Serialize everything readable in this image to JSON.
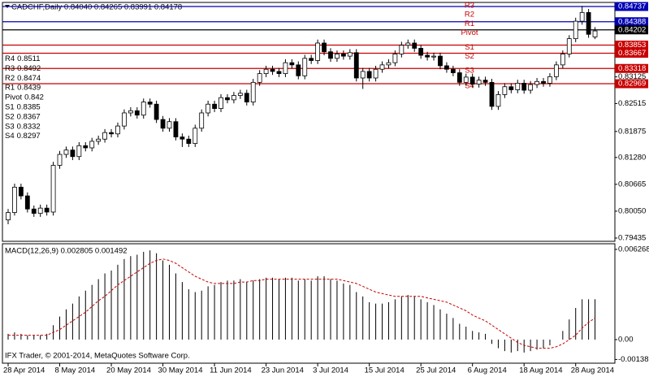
{
  "chart_data": [
    {
      "type": "candlestick",
      "title": "CADCHF,Daily  0.84040 0.84265 0.83991 0.84178",
      "categories": [
        "28 Apr 2014",
        null,
        null,
        null,
        null,
        null,
        null,
        null,
        "8 May 2014",
        null,
        null,
        null,
        null,
        null,
        null,
        null,
        "20 May 2014",
        null,
        null,
        null,
        null,
        null,
        null,
        null,
        "30 May 2014",
        null,
        null,
        null,
        null,
        null,
        null,
        null,
        "11 Jun 2014",
        null,
        null,
        null,
        null,
        null,
        null,
        null,
        "23 Jun 2014",
        null,
        null,
        null,
        null,
        null,
        null,
        null,
        "3 Jul 2014",
        null,
        null,
        null,
        null,
        null,
        null,
        null,
        "15 Jul 2014",
        null,
        null,
        null,
        null,
        null,
        null,
        null,
        "25 Jul 2014",
        null,
        null,
        null,
        null,
        null,
        null,
        null,
        "6 Aug 2014",
        null,
        null,
        null,
        null,
        null,
        null,
        null,
        "18 Aug 2014",
        null,
        null,
        null,
        null,
        null,
        null,
        null,
        "28 Aug 2014",
        null,
        null,
        null
      ],
      "open": [
        0.7985,
        0.8002,
        0.806,
        0.804,
        0.801,
        0.8,
        0.8012,
        0.8003,
        0.811,
        0.8135,
        0.8145,
        0.813,
        0.8155,
        0.815,
        0.8165,
        0.817,
        0.8185,
        0.8182,
        0.82,
        0.823,
        0.8235,
        0.8225,
        0.8255,
        0.825,
        0.8215,
        0.8195,
        0.821,
        0.8175,
        0.817,
        0.816,
        0.8195,
        0.823,
        0.825,
        0.824,
        0.8265,
        0.826,
        0.827,
        0.8275,
        0.8255,
        0.83,
        0.832,
        0.833,
        0.8325,
        0.832,
        0.8345,
        0.834,
        0.8315,
        0.8355,
        0.835,
        0.839,
        0.837,
        0.8355,
        0.8365,
        0.836,
        0.8368,
        0.831,
        0.8325,
        0.831,
        0.833,
        0.834,
        0.8345,
        0.8365,
        0.8385,
        0.839,
        0.8378,
        0.8362,
        0.8358,
        0.836,
        0.8338,
        0.833,
        0.8322,
        0.83,
        0.8312,
        0.8296,
        0.8305,
        0.83,
        0.8245,
        0.8272,
        0.829,
        0.8283,
        0.8298,
        0.8282,
        0.8295,
        0.8302,
        0.8298,
        0.8313,
        0.834,
        0.8365,
        0.84,
        0.844,
        0.846,
        0.8404
      ],
      "high": [
        0.801,
        0.8068,
        0.8068,
        0.8048,
        0.8018,
        0.802,
        0.802,
        0.8118,
        0.8143,
        0.8153,
        0.8153,
        0.8163,
        0.8163,
        0.8173,
        0.8178,
        0.8193,
        0.8193,
        0.8208,
        0.8238,
        0.8243,
        0.8243,
        0.8263,
        0.8263,
        0.8258,
        0.8223,
        0.8218,
        0.8218,
        0.8183,
        0.8178,
        0.8203,
        0.8238,
        0.8258,
        0.8258,
        0.8273,
        0.8273,
        0.8278,
        0.8283,
        0.8283,
        0.8308,
        0.8328,
        0.8338,
        0.8338,
        0.8333,
        0.8353,
        0.8353,
        0.8348,
        0.8363,
        0.8363,
        0.8398,
        0.8398,
        0.8378,
        0.8373,
        0.8373,
        0.8376,
        0.8376,
        0.8333,
        0.8333,
        0.8338,
        0.8348,
        0.8353,
        0.8373,
        0.8393,
        0.8398,
        0.8398,
        0.8386,
        0.837,
        0.8368,
        0.8368,
        0.8346,
        0.8338,
        0.833,
        0.832,
        0.832,
        0.8313,
        0.8313,
        0.8308,
        0.828,
        0.8298,
        0.8298,
        0.8306,
        0.8306,
        0.8303,
        0.831,
        0.831,
        0.8321,
        0.8348,
        0.8373,
        0.8408,
        0.8448,
        0.8475,
        0.8468,
        0.84265
      ],
      "low": [
        0.7975,
        0.7995,
        0.8032,
        0.8002,
        0.7992,
        0.7992,
        0.7995,
        0.7995,
        0.8102,
        0.8127,
        0.8122,
        0.8122,
        0.8142,
        0.8142,
        0.8157,
        0.8162,
        0.8174,
        0.8174,
        0.8192,
        0.8222,
        0.8217,
        0.8217,
        0.8242,
        0.8207,
        0.8187,
        0.8187,
        0.8167,
        0.8152,
        0.8152,
        0.8152,
        0.8187,
        0.8222,
        0.8232,
        0.8232,
        0.8252,
        0.8252,
        0.8262,
        0.8247,
        0.8247,
        0.8292,
        0.8312,
        0.8317,
        0.8312,
        0.8312,
        0.8332,
        0.8307,
        0.8307,
        0.8342,
        0.8342,
        0.8362,
        0.8347,
        0.8347,
        0.8352,
        0.8352,
        0.8302,
        0.8285,
        0.8302,
        0.8302,
        0.8322,
        0.8332,
        0.8337,
        0.8357,
        0.8377,
        0.837,
        0.8354,
        0.835,
        0.835,
        0.833,
        0.8322,
        0.8314,
        0.8292,
        0.8292,
        0.8288,
        0.8288,
        0.8292,
        0.8237,
        0.8237,
        0.8264,
        0.8275,
        0.8275,
        0.8274,
        0.8274,
        0.8287,
        0.829,
        0.829,
        0.8305,
        0.8332,
        0.8357,
        0.8392,
        0.8432,
        0.8402,
        0.83991
      ],
      "close": [
        0.8002,
        0.806,
        0.804,
        0.801,
        0.8,
        0.8012,
        0.8003,
        0.811,
        0.8135,
        0.8145,
        0.813,
        0.8155,
        0.815,
        0.8165,
        0.817,
        0.8185,
        0.8182,
        0.82,
        0.823,
        0.8235,
        0.8225,
        0.8255,
        0.825,
        0.8215,
        0.8195,
        0.821,
        0.8175,
        0.817,
        0.816,
        0.8195,
        0.823,
        0.825,
        0.824,
        0.8265,
        0.826,
        0.827,
        0.8275,
        0.8255,
        0.83,
        0.832,
        0.833,
        0.8325,
        0.832,
        0.8345,
        0.834,
        0.8315,
        0.8355,
        0.835,
        0.839,
        0.837,
        0.8355,
        0.8365,
        0.836,
        0.8368,
        0.831,
        0.8325,
        0.831,
        0.833,
        0.834,
        0.8345,
        0.8365,
        0.8385,
        0.839,
        0.8378,
        0.8362,
        0.8358,
        0.836,
        0.8338,
        0.833,
        0.8322,
        0.83,
        0.8312,
        0.8296,
        0.8305,
        0.83,
        0.8245,
        0.8272,
        0.829,
        0.8283,
        0.8298,
        0.8282,
        0.8295,
        0.8302,
        0.8298,
        0.8313,
        0.834,
        0.8365,
        0.84,
        0.844,
        0.846,
        0.841,
        0.84178
      ],
      "ylim": [
        0.7936,
        0.8483
      ],
      "yticks": [
        0.79435,
        {
          "value": 0.8005,
          "label": "0.80050"
        },
        0.80665,
        {
          "value": 0.8128,
          "label": "0.81280"
        },
        0.81875,
        0.82515,
        0.83125
      ],
      "axis_markers": [
        {
          "value": 0.84737,
          "color": "#0000b4"
        },
        {
          "value": 0.84388,
          "color": "#0000b4"
        },
        {
          "value": 0.84202,
          "color": "#000000"
        },
        {
          "value": 0.83853,
          "color": "#c80000"
        },
        {
          "value": 0.83667,
          "color": "#c80000"
        },
        {
          "value": 0.83318,
          "color": "#c80000"
        },
        {
          "value": 0.82969,
          "color": "#c80000"
        }
      ],
      "pivot_levels": [
        {
          "name": "R4",
          "value": 0.8511
        },
        {
          "name": "R3",
          "value": 0.8492
        },
        {
          "name": "R2",
          "value": 0.8474
        },
        {
          "name": "R1",
          "value": 0.8439
        },
        {
          "name": "Pivot",
          "value": 0.842
        },
        {
          "name": "S1",
          "value": 0.8385
        },
        {
          "name": "S2",
          "value": 0.8367
        },
        {
          "name": "S3",
          "value": 0.8332
        },
        {
          "name": "S4",
          "value": 0.8297
        }
      ],
      "level_tags": [
        "R3",
        "R2",
        "R1",
        "Pivot",
        "S1",
        "S2",
        "S3",
        "S4"
      ],
      "tag_color": "#c80000"
    },
    {
      "type": "macd",
      "title": "MACD(12,26,9) 0.002805 0.001492",
      "annotation": "IFX Trader, © 2001-2014, MetaQuotes Software Corp.",
      "histogram": {
        "color": "#000000",
        "values": [
          0.0004,
          0.0005,
          0.0004,
          0.0003,
          0.0003,
          0.0003,
          0.0004,
          0.001,
          0.0016,
          0.0021,
          0.0025,
          0.003,
          0.0034,
          0.0038,
          0.0042,
          0.0046,
          0.0048,
          0.0052,
          0.0056,
          0.0058,
          0.0059,
          0.0061,
          0.0062,
          0.006,
          0.0055,
          0.0052,
          0.0046,
          0.004,
          0.0035,
          0.0033,
          0.0034,
          0.0037,
          0.0038,
          0.004,
          0.0041,
          0.0041,
          0.0042,
          0.004,
          0.0041,
          0.0042,
          0.0043,
          0.0043,
          0.0042,
          0.0043,
          0.0043,
          0.0041,
          0.0042,
          0.0041,
          0.0044,
          0.0044,
          0.0042,
          0.0041,
          0.0039,
          0.0038,
          0.0033,
          0.003,
          0.0026,
          0.0025,
          0.0025,
          0.0026,
          0.0028,
          0.003,
          0.0031,
          0.003,
          0.0028,
          0.0026,
          0.0024,
          0.0021,
          0.0018,
          0.0015,
          0.0011,
          0.0009,
          0.0006,
          0.0005,
          0.0004,
          -0.0003,
          -0.0006,
          -0.0008,
          -0.0009,
          -0.0008,
          -0.0009,
          -0.0008,
          -0.0007,
          -0.0006,
          -0.0004,
          0.0,
          0.0006,
          0.0014,
          0.0022,
          0.0028,
          0.0028,
          0.002805
        ]
      },
      "signal": {
        "color": "#c80000",
        "values": [
          0.0003,
          0.0003,
          0.0003,
          0.0003,
          0.0003,
          0.0003,
          0.0003,
          0.0005,
          0.0007,
          0.001,
          0.0013,
          0.0016,
          0.0019,
          0.0023,
          0.0027,
          0.003,
          0.0034,
          0.0038,
          0.0041,
          0.0044,
          0.0047,
          0.005,
          0.0053,
          0.0055,
          0.0056,
          0.0055,
          0.0053,
          0.005,
          0.0047,
          0.0044,
          0.0042,
          0.004,
          0.0039,
          0.0039,
          0.0039,
          0.0039,
          0.004,
          0.004,
          0.0041,
          0.0041,
          0.0042,
          0.0042,
          0.0042,
          0.0042,
          0.0042,
          0.0042,
          0.0042,
          0.0042,
          0.0042,
          0.0042,
          0.0042,
          0.0042,
          0.0041,
          0.004,
          0.0039,
          0.0037,
          0.0035,
          0.0033,
          0.0032,
          0.0031,
          0.003,
          0.003,
          0.003,
          0.003,
          0.003,
          0.0029,
          0.0028,
          0.0027,
          0.0026,
          0.0024,
          0.0022,
          0.002,
          0.0017,
          0.0015,
          0.0013,
          0.001,
          0.0007,
          0.0004,
          0.0001,
          -0.0002,
          -0.0004,
          -0.0005,
          -0.0006,
          -0.0006,
          -0.0006,
          -0.0005,
          -0.0003,
          0.0,
          0.0003,
          0.0008,
          0.0012,
          0.001492
        ]
      },
      "ylim": [
        -0.00164,
        0.00666
      ],
      "yticks": [
        0.006268,
        {
          "value": 0,
          "label": "0.00"
        },
        -0.001381
      ]
    }
  ]
}
